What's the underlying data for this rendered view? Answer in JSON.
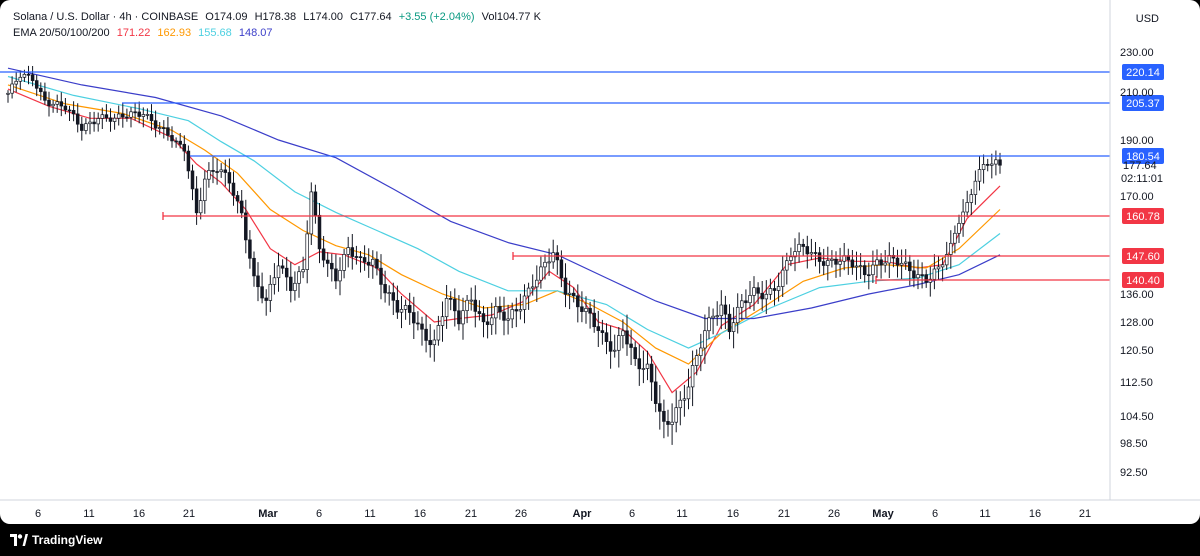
{
  "header": {
    "symbol": "Solana / U.S. Dollar · 4h · COINBASE",
    "open": "O174.09",
    "high": "H178.38",
    "low": "L174.00",
    "close": "C177.64",
    "change": "+3.55 (+2.04%)",
    "volume": "Vol104.77 K",
    "ema_label": "EMA 20/50/100/200",
    "ema_values": [
      "171.22",
      "162.93",
      "155.68",
      "148.07"
    ],
    "currency": "USD"
  },
  "colors": {
    "up": "#2962ff",
    "ema20": "#f23645",
    "ema50": "#ff9800",
    "ema100": "#4dd0e1",
    "ema200": "#3b3ec9",
    "resistance": "#2962ff",
    "support": "#f23645",
    "candle": "#131722"
  },
  "footer": {
    "brand": "TradingView"
  },
  "chart_data": {
    "type": "line",
    "title": "Solana / U.S. Dollar · 4h · COINBASE",
    "xlabel": "",
    "ylabel": "",
    "ylim": [
      90,
      236
    ],
    "price_ticks": [
      "230.00",
      "210.00",
      "190.00",
      "170.00",
      "136.00",
      "128.00",
      "120.50",
      "112.50",
      "104.50",
      "98.50",
      "92.50"
    ],
    "date_ticks": [
      "6",
      "11",
      "16",
      "21",
      "Mar",
      "6",
      "11",
      "16",
      "21",
      "26",
      "Apr",
      "6",
      "11",
      "16",
      "21",
      "26",
      "May",
      "6",
      "11",
      "16",
      "21"
    ],
    "last_price_label": "177.64",
    "countdown": "02:11:01",
    "levels": [
      {
        "value": 220.14,
        "label": "220.14",
        "kind": "resistance"
      },
      {
        "value": 205.37,
        "label": "205.37",
        "kind": "resistance"
      },
      {
        "value": 180.54,
        "label": "180.54",
        "kind": "resistance"
      },
      {
        "value": 160.78,
        "label": "160.78",
        "kind": "support"
      },
      {
        "value": 147.6,
        "label": "147.60",
        "kind": "support"
      },
      {
        "value": 140.4,
        "label": "140.40",
        "kind": "support"
      }
    ],
    "price_series": {
      "name": "SOL/USD",
      "points": [
        [
          0,
          210
        ],
        [
          3,
          218
        ],
        [
          6,
          217
        ],
        [
          9,
          207
        ],
        [
          14,
          203
        ],
        [
          18,
          195
        ],
        [
          22,
          200
        ],
        [
          26,
          198
        ],
        [
          30,
          201
        ],
        [
          33,
          202
        ],
        [
          36,
          196
        ],
        [
          40,
          190
        ],
        [
          43,
          185
        ],
        [
          46,
          162
        ],
        [
          48,
          173
        ],
        [
          51,
          176
        ],
        [
          54,
          173
        ],
        [
          57,
          162
        ],
        [
          60,
          140
        ],
        [
          63,
          133
        ],
        [
          66,
          146
        ],
        [
          69,
          139
        ],
        [
          72,
          143
        ],
        [
          74,
          168
        ],
        [
          76,
          150
        ],
        [
          78,
          145
        ],
        [
          80,
          142
        ],
        [
          83,
          150
        ],
        [
          86,
          145
        ],
        [
          89,
          146
        ],
        [
          92,
          138
        ],
        [
          95,
          132
        ],
        [
          98,
          130
        ],
        [
          101,
          125
        ],
        [
          104,
          123
        ],
        [
          107,
          135
        ],
        [
          110,
          128
        ],
        [
          113,
          135
        ],
        [
          116,
          128
        ],
        [
          119,
          131
        ],
        [
          122,
          128
        ],
        [
          125,
          133
        ],
        [
          128,
          140
        ],
        [
          131,
          145
        ],
        [
          133,
          148
        ],
        [
          136,
          137
        ],
        [
          139,
          134
        ],
        [
          142,
          130
        ],
        [
          145,
          123
        ],
        [
          148,
          120
        ],
        [
          150,
          127
        ],
        [
          153,
          118
        ],
        [
          156,
          115
        ],
        [
          158,
          108
        ],
        [
          160,
          102
        ],
        [
          162,
          105
        ],
        [
          164,
          108
        ],
        [
          166,
          112
        ],
        [
          168,
          118
        ],
        [
          170,
          125
        ],
        [
          172,
          130
        ],
        [
          174,
          133
        ],
        [
          176,
          127
        ],
        [
          179,
          133
        ],
        [
          182,
          136
        ],
        [
          185,
          136
        ],
        [
          188,
          140
        ],
        [
          191,
          148
        ],
        [
          194,
          150
        ],
        [
          197,
          148
        ],
        [
          200,
          146
        ],
        [
          203,
          146
        ],
        [
          206,
          145
        ],
        [
          209,
          143
        ],
        [
          212,
          146
        ],
        [
          215,
          146
        ],
        [
          218,
          145
        ],
        [
          221,
          143
        ],
        [
          224,
          141
        ],
        [
          227,
          143
        ],
        [
          230,
          150
        ],
        [
          232,
          160
        ],
        [
          234,
          165
        ],
        [
          236,
          174
        ],
        [
          239,
          178
        ],
        [
          242,
          177
        ]
      ]
    },
    "ema_series": [
      {
        "name": "171.22",
        "points": [
          [
            0,
            212
          ],
          [
            10,
            204
          ],
          [
            20,
            199
          ],
          [
            30,
            199
          ],
          [
            40,
            191
          ],
          [
            46,
            178
          ],
          [
            52,
            172
          ],
          [
            58,
            163
          ],
          [
            64,
            150
          ],
          [
            70,
            145
          ],
          [
            76,
            149
          ],
          [
            82,
            148
          ],
          [
            90,
            144
          ],
          [
            96,
            136
          ],
          [
            104,
            128
          ],
          [
            110,
            129
          ],
          [
            118,
            130
          ],
          [
            126,
            134
          ],
          [
            132,
            143
          ],
          [
            138,
            138
          ],
          [
            144,
            128
          ],
          [
            150,
            126
          ],
          [
            156,
            120
          ],
          [
            162,
            110
          ],
          [
            168,
            115
          ],
          [
            174,
            127
          ],
          [
            182,
            133
          ],
          [
            190,
            145
          ],
          [
            198,
            147
          ],
          [
            206,
            146
          ],
          [
            214,
            146
          ],
          [
            222,
            144
          ],
          [
            228,
            145
          ],
          [
            234,
            160
          ],
          [
            242,
            171
          ]
        ]
      },
      {
        "name": "162.93",
        "points": [
          [
            0,
            214
          ],
          [
            14,
            205
          ],
          [
            28,
            201
          ],
          [
            40,
            194
          ],
          [
            48,
            184
          ],
          [
            56,
            175
          ],
          [
            64,
            163
          ],
          [
            72,
            156
          ],
          [
            80,
            151
          ],
          [
            88,
            148
          ],
          [
            96,
            142
          ],
          [
            106,
            136
          ],
          [
            116,
            132
          ],
          [
            126,
            133
          ],
          [
            134,
            137
          ],
          [
            142,
            133
          ],
          [
            150,
            128
          ],
          [
            158,
            121
          ],
          [
            166,
            117
          ],
          [
            174,
            125
          ],
          [
            184,
            132
          ],
          [
            194,
            140
          ],
          [
            204,
            144
          ],
          [
            214,
            145
          ],
          [
            224,
            144
          ],
          [
            232,
            150
          ],
          [
            242,
            163
          ]
        ]
      },
      {
        "name": "155.68",
        "points": [
          [
            0,
            218
          ],
          [
            16,
            209
          ],
          [
            32,
            203
          ],
          [
            44,
            198
          ],
          [
            52,
            189
          ],
          [
            60,
            179
          ],
          [
            70,
            169
          ],
          [
            80,
            162
          ],
          [
            90,
            156
          ],
          [
            100,
            150
          ],
          [
            110,
            143
          ],
          [
            122,
            137
          ],
          [
            134,
            137
          ],
          [
            146,
            133
          ],
          [
            156,
            126
          ],
          [
            166,
            121
          ],
          [
            174,
            125
          ],
          [
            186,
            132
          ],
          [
            198,
            138
          ],
          [
            210,
            140
          ],
          [
            222,
            141
          ],
          [
            232,
            145
          ],
          [
            242,
            155
          ]
        ]
      },
      {
        "name": "148.07",
        "points": [
          [
            0,
            222
          ],
          [
            18,
            214
          ],
          [
            36,
            208
          ],
          [
            52,
            200
          ],
          [
            66,
            190
          ],
          [
            80,
            180
          ],
          [
            94,
            170
          ],
          [
            108,
            159
          ],
          [
            122,
            152
          ],
          [
            134,
            148
          ],
          [
            146,
            141
          ],
          [
            158,
            134
          ],
          [
            170,
            129
          ],
          [
            182,
            129
          ],
          [
            196,
            132
          ],
          [
            210,
            136
          ],
          [
            222,
            139
          ],
          [
            232,
            142
          ],
          [
            242,
            148
          ]
        ]
      }
    ]
  }
}
